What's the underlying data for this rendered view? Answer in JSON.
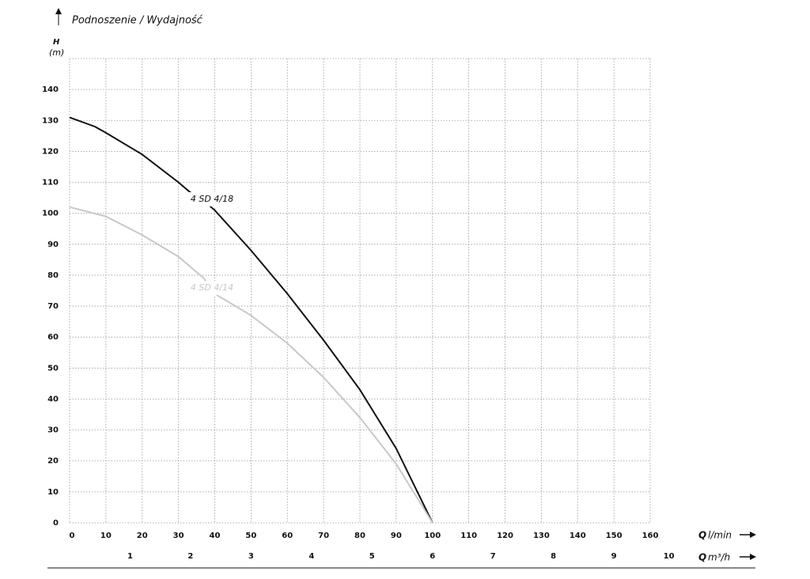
{
  "chart_data": {
    "type": "line",
    "title": "Podnoszenie / Wydajność",
    "ylabel": {
      "symbol": "H",
      "unit": "(m)"
    },
    "xlabel": {
      "symbol": "Q",
      "unit": "l/min"
    },
    "x2label": {
      "symbol": "Q",
      "unit": "m³/h"
    },
    "xlim": [
      0,
      160
    ],
    "xticks": [
      0,
      10,
      20,
      30,
      40,
      50,
      60,
      70,
      80,
      90,
      100,
      110,
      120,
      130,
      140,
      150,
      160
    ],
    "x2lim": [
      0,
      9.6
    ],
    "x2ticks": [
      1,
      2,
      3,
      4,
      5,
      6,
      7,
      8,
      9,
      10
    ],
    "ylim": [
      0,
      150
    ],
    "yticks": [
      0,
      10,
      20,
      30,
      40,
      50,
      60,
      70,
      80,
      90,
      100,
      110,
      120,
      130,
      140
    ],
    "grid": true,
    "series": [
      {
        "name": "4 SD 4/18",
        "color": "#111111",
        "x": [
          0,
          7,
          10,
          20,
          30,
          33,
          38,
          40,
          50,
          60,
          70,
          80,
          90,
          100
        ],
        "values": [
          131,
          128,
          126,
          119,
          110,
          107,
          103,
          101,
          88,
          74,
          59,
          43,
          24,
          0
        ]
      },
      {
        "name": "4 SD 4/14",
        "color": "#c8c8c8",
        "x": [
          0,
          10,
          20,
          30,
          37,
          40,
          50,
          60,
          70,
          80,
          90,
          100
        ],
        "values": [
          102,
          99,
          93,
          86,
          79,
          74,
          67,
          58,
          47,
          34,
          19,
          0
        ]
      }
    ]
  }
}
